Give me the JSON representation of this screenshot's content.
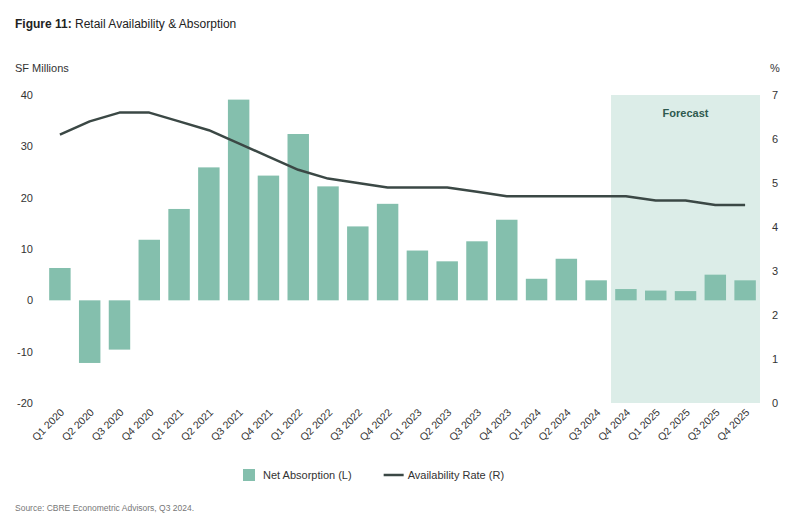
{
  "chart_data": {
    "type": "bar",
    "title": "Figure 11: Retail Availability & Absorption",
    "y_label": "SF Millions",
    "y2_label": "%",
    "source": "Source: CBRE Econometric Advisors, Q3 2024.",
    "categories": [
      "Q1 2020",
      "Q2 2020",
      "Q3 2020",
      "Q4 2020",
      "Q1 2021",
      "Q2 2021",
      "Q3 2021",
      "Q4 2021",
      "Q1 2022",
      "Q2 2022",
      "Q3 2022",
      "Q4 2022",
      "Q1 2023",
      "Q2 2023",
      "Q3 2023",
      "Q4 2023",
      "Q1 2024",
      "Q2 2024",
      "Q3 2024",
      "Q4 2024",
      "Q1 2025",
      "Q2 2025",
      "Q3 2025",
      "Q4 2025"
    ],
    "series": [
      {
        "name": "Net Absorption (L)",
        "type": "bar",
        "color": "#84bfad",
        "values": [
          6.3,
          -12.2,
          -9.6,
          11.8,
          17.8,
          25.9,
          39.1,
          24.3,
          32.4,
          22.2,
          14.4,
          18.8,
          9.7,
          7.6,
          11.5,
          15.7,
          4.2,
          8.1,
          3.9,
          2.2,
          1.9,
          1.8,
          5.0,
          3.9
        ]
      },
      {
        "name": "Availability Rate (R)",
        "type": "line",
        "color": "#3b4845",
        "axis": "y2",
        "values": [
          6.1,
          6.4,
          6.6,
          6.6,
          6.4,
          6.2,
          5.9,
          5.6,
          5.3,
          5.1,
          5.0,
          4.9,
          4.9,
          4.9,
          4.8,
          4.7,
          4.7,
          4.7,
          4.7,
          4.7,
          4.6,
          4.6,
          4.5,
          4.5
        ]
      }
    ],
    "ylim": [
      -20,
      40
    ],
    "yticks": [
      -20,
      -10,
      0,
      10,
      20,
      30,
      40
    ],
    "y2lim": [
      0,
      7
    ],
    "y2ticks": [
      0,
      1,
      2,
      3,
      4,
      5,
      6,
      7
    ],
    "grid": false,
    "legend": "bottom",
    "annotations": [
      {
        "text": "Forecast",
        "from": "Q4 2024",
        "to": "Q4 2025"
      }
    ]
  }
}
